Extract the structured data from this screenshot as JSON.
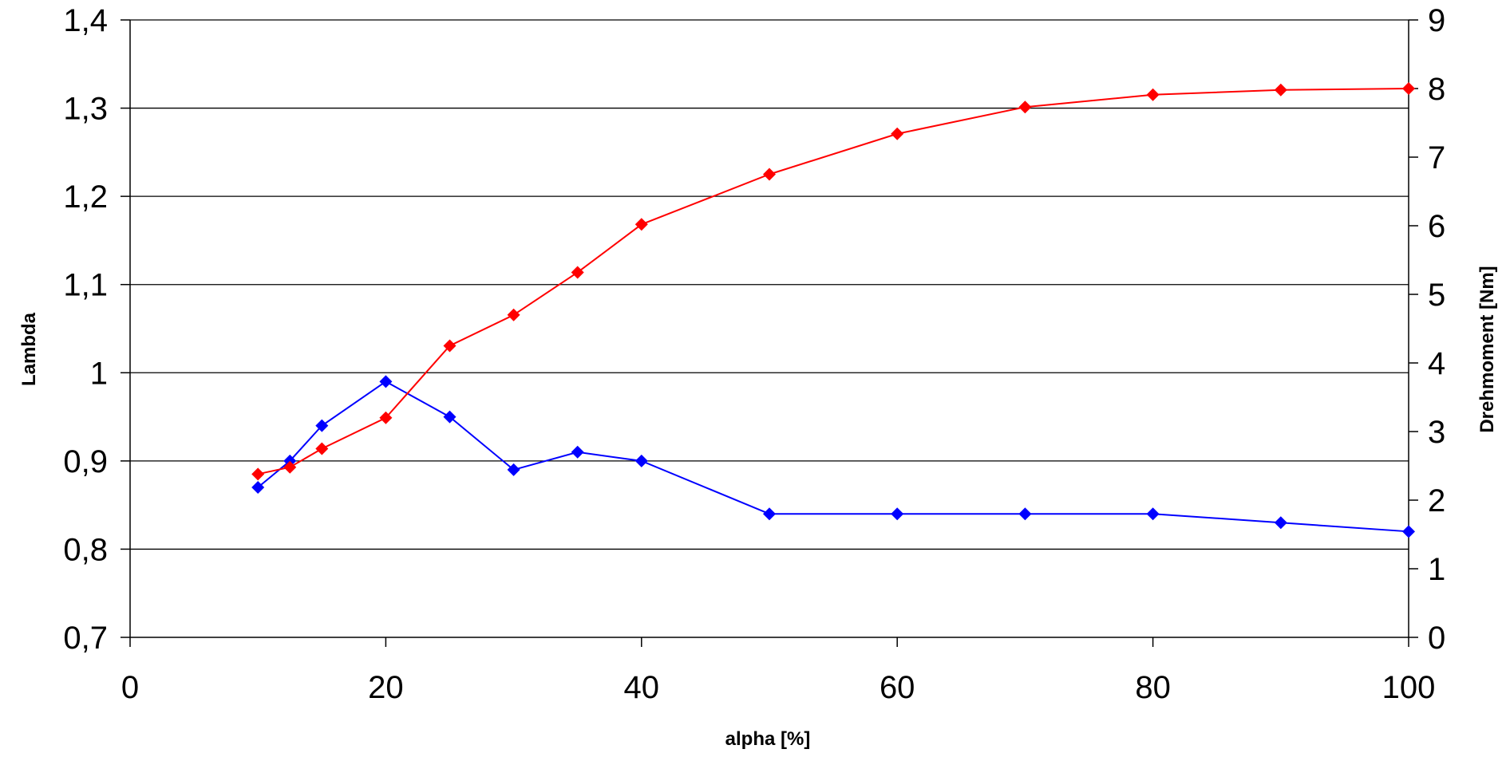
{
  "chart_data": {
    "type": "line",
    "title": "",
    "xlabel": "alpha [%]",
    "ylabel": "Lambda",
    "y2label": "Drehmoment [Nm]",
    "xlim": [
      0,
      100
    ],
    "ylim": [
      0.7,
      1.4
    ],
    "y2lim": [
      0,
      9
    ],
    "grid": true,
    "legend": "none",
    "x_ticks": [
      "0",
      "20",
      "40",
      "60",
      "80",
      "100"
    ],
    "y_ticks": [
      "0,7",
      "0,8",
      "0,9",
      "1",
      "1,1",
      "1,2",
      "1,3",
      "1,4"
    ],
    "y2_ticks": [
      "0",
      "1",
      "2",
      "3",
      "4",
      "5",
      "6",
      "7",
      "8",
      "9"
    ],
    "series": [
      {
        "axis": "left",
        "color": "#0000ff",
        "x": [
          10,
          12.5,
          15,
          20,
          25,
          30,
          35,
          40,
          50,
          60,
          70,
          80,
          90,
          100
        ],
        "values": [
          0.87,
          0.9,
          0.94,
          0.99,
          0.95,
          0.89,
          0.91,
          0.9,
          0.84,
          0.84,
          0.84,
          0.84,
          0.83,
          0.82
        ]
      },
      {
        "axis": "right",
        "color": "#ff0000",
        "x": [
          10,
          12.5,
          15,
          20,
          25,
          30,
          35,
          40,
          50,
          60,
          70,
          80,
          90,
          100
        ],
        "values": [
          2.38,
          2.48,
          2.75,
          3.2,
          4.25,
          4.7,
          5.32,
          6.02,
          6.75,
          7.34,
          7.73,
          7.91,
          7.98,
          8.0
        ]
      }
    ]
  }
}
